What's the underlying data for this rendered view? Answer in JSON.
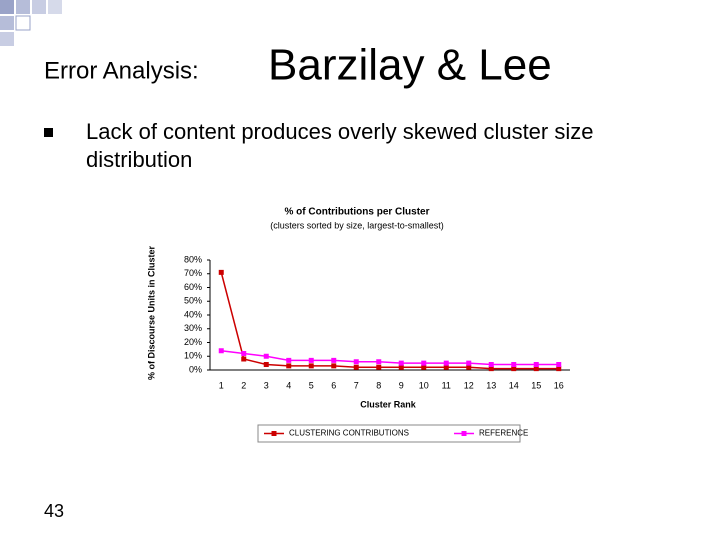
{
  "slide": {
    "title_prefix": "Error Analysis:",
    "title_main": "Barzilay & Lee",
    "bullets": [
      "Lack of content produces overly skewed cluster size distribution"
    ],
    "page_number": "43"
  },
  "chart_data": {
    "type": "line",
    "title": "% of Contributions per Cluster",
    "subtitle": "(clusters sorted by size, largest-to-smallest)",
    "x_label": "Cluster Rank",
    "y_label": "% of Discourse Units in Cluster",
    "categories": [
      "1",
      "2",
      "3",
      "4",
      "5",
      "6",
      "7",
      "8",
      "9",
      "10",
      "11",
      "12",
      "13",
      "14",
      "15",
      "16"
    ],
    "series": [
      {
        "name": "CLUSTERING CONTRIBUTIONS",
        "color": "#cc0000",
        "values": [
          71,
          8,
          4,
          3,
          3,
          3,
          2,
          2,
          2,
          2,
          2,
          2,
          1,
          1,
          1,
          1
        ]
      },
      {
        "name": "REFERENCE",
        "color": "#ff00ff",
        "values": [
          14,
          12,
          10,
          7,
          7,
          7,
          6,
          6,
          5,
          5,
          5,
          5,
          4,
          4,
          4,
          4
        ]
      }
    ],
    "ylim": [
      0,
      80
    ],
    "yticks": [
      {
        "value": 0,
        "label": "0%"
      },
      {
        "value": 10,
        "label": "10%"
      },
      {
        "value": 20,
        "label": "20%"
      },
      {
        "value": 30,
        "label": "30%"
      },
      {
        "value": 40,
        "label": "40%"
      },
      {
        "value": 50,
        "label": "50%"
      },
      {
        "value": 60,
        "label": "60%"
      },
      {
        "value": 70,
        "label": "70%"
      },
      {
        "value": 80,
        "label": "80%"
      }
    ],
    "legend": "bottom"
  }
}
